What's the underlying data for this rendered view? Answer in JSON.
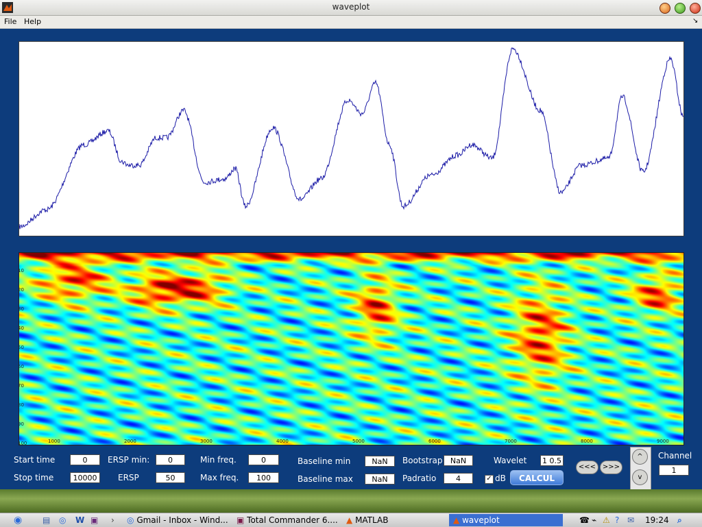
{
  "window": {
    "title": "waveplot"
  },
  "menu": {
    "file": "File",
    "help": "Help"
  },
  "controls": {
    "start_time": {
      "label": "Start time",
      "value": "0"
    },
    "stop_time": {
      "label": "Stop time",
      "value": "10000"
    },
    "ersp_min": {
      "label": "ERSP min:",
      "value": "0"
    },
    "ersp": {
      "label": "ERSP",
      "value": "50"
    },
    "min_freq": {
      "label": "Min freq.",
      "value": "0"
    },
    "max_freq": {
      "label": "Max freq.",
      "value": "100"
    },
    "baseline_min": {
      "label": "Baseline min",
      "value": "NaN"
    },
    "baseline_max": {
      "label": "Baseline max",
      "value": "NaN"
    },
    "bootstrap": {
      "label": "Bootstrap",
      "value": "NaN"
    },
    "padratio": {
      "label": "Padratio",
      "value": "4"
    },
    "wavelet": {
      "label": "Wavelet",
      "value": "1 0.5"
    },
    "db": {
      "label": "dB",
      "checked": true
    },
    "calc_label": "CALCUL",
    "prev_label": "<<<",
    "next_label": ">>>",
    "up_label": "^",
    "down_label": "v",
    "channel": {
      "label": "Channel",
      "value": "1"
    }
  },
  "spectrogram": {
    "x_ticks": [
      "1000",
      "2000",
      "3000",
      "4000",
      "5000",
      "6000",
      "7000",
      "8000",
      "9000"
    ],
    "y_ticks": [
      "10",
      "20",
      "30",
      "40",
      "50",
      "60",
      "70",
      "80",
      "90",
      "100"
    ]
  },
  "taskbar": {
    "items": [
      {
        "label": "Gmail - Inbox - Wind..."
      },
      {
        "label": "Total Commander 6...."
      },
      {
        "label": "MATLAB"
      },
      {
        "label": "waveplot"
      }
    ],
    "clock": "19:24"
  },
  "colors": {
    "figure_bg": "#0d3c7c",
    "trace": "#1a1aa6"
  }
}
